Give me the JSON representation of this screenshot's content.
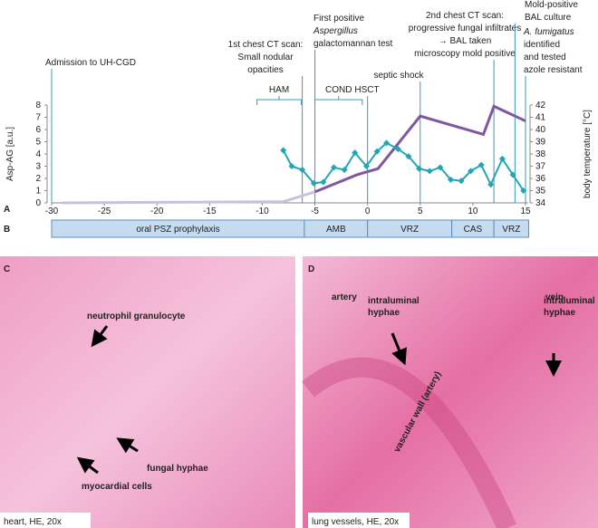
{
  "chart_data": {
    "type": "line",
    "xlim": [
      -30,
      15
    ],
    "xticks": [
      -30,
      -25,
      -20,
      -15,
      -10,
      -5,
      0,
      5,
      10,
      15
    ],
    "ylim": [
      0,
      8
    ],
    "yticks": [
      0,
      1,
      2,
      3,
      4,
      5,
      6,
      7,
      8
    ],
    "ylabel": "Asp-AG [a.u.]",
    "y2lim": [
      34,
      42
    ],
    "y2ticks": [
      34,
      35,
      36,
      37,
      38,
      39,
      40,
      41,
      42
    ],
    "y2label": "body temperature [°C]",
    "series": [
      {
        "color": "#c9c0d9",
        "x": [
          -29,
          -8,
          -5
        ],
        "values": [
          0,
          0.1,
          0.9
        ]
      },
      {
        "color": "#7e57a0",
        "x": [
          -5,
          -1,
          1,
          5,
          11,
          12,
          15
        ],
        "values": [
          0.9,
          2.3,
          2.8,
          7.1,
          5.6,
          7.9,
          6.7
        ]
      },
      {
        "color": "#22a6b3",
        "axis": "y2",
        "markers": true,
        "x": [
          -8,
          -7.2,
          -6.2,
          -5.1,
          -4.2,
          -3.2,
          -2.2,
          -1.2,
          -0.1,
          0.9,
          1.8,
          2.9,
          3.9,
          4.9,
          5.9,
          6.9,
          7.9,
          8.9,
          9.8,
          10.8,
          11.7,
          12.8,
          13.8,
          14.8
        ],
        "values": [
          38.3,
          37,
          36.7,
          35.6,
          35.7,
          36.9,
          36.7,
          38.1,
          37,
          38.2,
          38.9,
          38.4,
          37.8,
          36.8,
          36.6,
          36.9,
          35.9,
          35.8,
          36.6,
          37.1,
          35.5,
          37.6,
          36.3,
          35
        ]
      }
    ],
    "events": [
      {
        "x": -30,
        "lines": [
          "Admission to  UH-CGD"
        ]
      },
      {
        "x": -6.2,
        "lines": [
          "1st chest CT scan:",
          "Small nodular",
          "opacities"
        ]
      },
      {
        "x": -5,
        "lines": [
          "First positive",
          "Aspergillus",
          "galactomannan test"
        ]
      },
      {
        "x": 0,
        "lines": [
          "HSCT"
        ]
      },
      {
        "x": 5,
        "lines": [
          "septic shock"
        ]
      },
      {
        "x": 12,
        "lines": [
          "2nd chest CT scan:",
          "progressive fungal infiltrates",
          "→ BAL taken",
          "microscopy mold positive"
        ]
      },
      {
        "x": 14,
        "lines": [
          "Mold-positive",
          "BAL culture"
        ]
      },
      {
        "x": 15,
        "lines": [
          "A. fumigatus",
          "identified",
          "and tested",
          "azole resistant"
        ]
      }
    ],
    "periods": [
      {
        "label": "HAM",
        "start": -10.5,
        "end": -6.3
      },
      {
        "label": "COND",
        "start": -5,
        "end": -0.5
      }
    ],
    "treatments": [
      {
        "label": "oral PSZ prophylaxis",
        "start": -30,
        "end": -6
      },
      {
        "label": "AMB",
        "start": -6,
        "end": 0
      },
      {
        "label": "VRZ",
        "start": 0,
        "end": 8
      },
      {
        "label": "CAS",
        "start": 8,
        "end": 12
      },
      {
        "label": "VRZ",
        "start": 12,
        "end": 15.3
      }
    ]
  },
  "panel_labels": [
    "A",
    "B",
    "C",
    "D"
  ],
  "histology": [
    {
      "caption": "heart, HE, 20x",
      "labels": [
        "neutrophil granulocyte",
        "fungal hyphae",
        "myocardial cells"
      ]
    },
    {
      "caption": "lung vessels, HE, 20x",
      "labels": [
        "artery",
        "vein",
        "intraluminal hyphae",
        "intraluminal hyphae",
        "vascular wall (artery)"
      ]
    }
  ]
}
